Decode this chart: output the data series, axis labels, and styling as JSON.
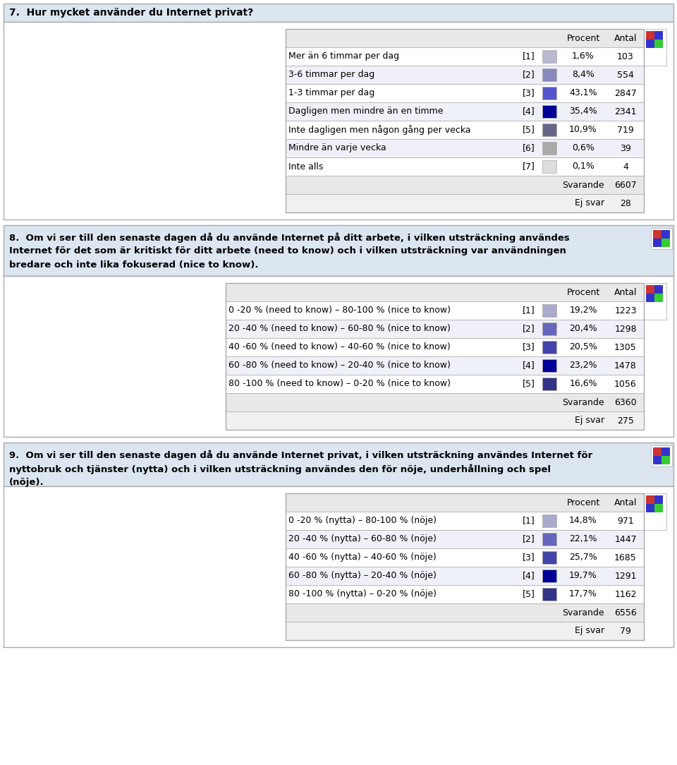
{
  "title7": "7.  Hur mycket använder du Internet privat?",
  "title8": "8.  Om vi ser till den senaste dagen då du använde Internet på ditt arbete, i vilken utsträckning användes\nInternet för det som är kritiskt för ditt arbete (need to know) och i vilken utsträckning var användningen\nbredare och inte lika fokuserad (nice to know).",
  "title9": "9.  Om vi ser till den senaste dagen då du använde Internet privat, i vilken utsträckning användes Internet för\nnyttobruk och tjänster (nytta) och i vilken utsträckning användes den för nöje, underhållning och spel\n(nöje).",
  "q7_rows": [
    {
      "label": "Mer än 6 timmar per dag",
      "code": "[1]",
      "pct": "1,6%",
      "antal": "103",
      "color": "#b8b8d0"
    },
    {
      "label": "3-6 timmar per dag",
      "code": "[2]",
      "pct": "8,4%",
      "antal": "554",
      "color": "#8888bb"
    },
    {
      "label": "1-3 timmar per dag",
      "code": "[3]",
      "pct": "43,1%",
      "antal": "2847",
      "color": "#5555cc"
    },
    {
      "label": "Dagligen men mindre än en timme",
      "code": "[4]",
      "pct": "35,4%",
      "antal": "2341",
      "color": "#000099"
    },
    {
      "label": "Inte dagligen men någon gång per vecka",
      "code": "[5]",
      "pct": "10,9%",
      "antal": "719",
      "color": "#666688"
    },
    {
      "label": "Mindre än varje vecka",
      "code": "[6]",
      "pct": "0,6%",
      "antal": "39",
      "color": "#aaaaaa"
    },
    {
      "label": "Inte alls",
      "code": "[7]",
      "pct": "0,1%",
      "antal": "4",
      "color": "#dddddd"
    }
  ],
  "q7_svarande": "6607",
  "q7_ejsvar": "28",
  "q8_rows": [
    {
      "label": "0 -20 % (need to know) – 80-100 % (nice to know)",
      "code": "[1]",
      "pct": "19,2%",
      "antal": "1223",
      "color": "#aaaacc"
    },
    {
      "label": "20 -40 % (need to know) – 60-80 % (nice to know)",
      "code": "[2]",
      "pct": "20,4%",
      "antal": "1298",
      "color": "#6666bb"
    },
    {
      "label": "40 -60 % (need to know) – 40-60 % (nice to know)",
      "code": "[3]",
      "pct": "20,5%",
      "antal": "1305",
      "color": "#4444aa"
    },
    {
      "label": "60 -80 % (need to know) – 20-40 % (nice to know)",
      "code": "[4]",
      "pct": "23,2%",
      "antal": "1478",
      "color": "#000099"
    },
    {
      "label": "80 -100 % (need to know) – 0-20 % (nice to know)",
      "code": "[5]",
      "pct": "16,6%",
      "antal": "1056",
      "color": "#333388"
    }
  ],
  "q8_svarande": "6360",
  "q8_ejsvar": "275",
  "q9_rows": [
    {
      "label": "0 -20 % (nytta) – 80-100 % (nöje)",
      "code": "[1]",
      "pct": "14,8%",
      "antal": "971",
      "color": "#aaaacc"
    },
    {
      "label": "20 -40 % (nytta) – 60-80 % (nöje)",
      "code": "[2]",
      "pct": "22,1%",
      "antal": "1447",
      "color": "#6666bb"
    },
    {
      "label": "40 -60 % (nytta) – 40-60 % (nöje)",
      "code": "[3]",
      "pct": "25,7%",
      "antal": "1685",
      "color": "#4444aa"
    },
    {
      "label": "60 -80 % (nytta) – 20-40 % (nöje)",
      "code": "[4]",
      "pct": "19,7%",
      "antal": "1291",
      "color": "#000099"
    },
    {
      "label": "80 -100 % (nytta) – 0-20 % (nöje)",
      "code": "[5]",
      "pct": "17,7%",
      "antal": "1162",
      "color": "#333388"
    }
  ],
  "q9_svarande": "6556",
  "q9_ejsvar": "79",
  "border_color": "#aaaaaa",
  "title_bg": "#dce6f1",
  "content_bg": "#ffffff",
  "header_row_bg": "#e8e8e8",
  "row_bg_a": "#ffffff",
  "row_bg_b": "#f0f0f8",
  "footer_row_bg": "#e8e8e8",
  "footer2_row_bg": "#f0f0f0",
  "font_size": 9,
  "title_font_size": 9.5
}
